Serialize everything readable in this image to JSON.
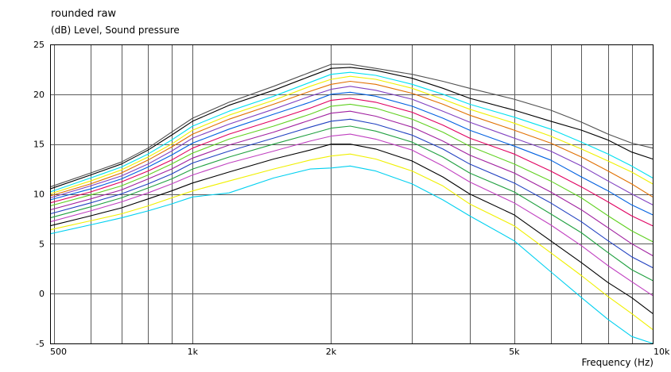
{
  "chart_data": {
    "type": "line",
    "title": "rounded raw",
    "ylabel": "(dB)  Level, Sound pressure",
    "xlabel": "Frequency  (Hz)",
    "x_scale": "log",
    "xlim": [
      490,
      10000
    ],
    "ylim": [
      -5,
      25
    ],
    "grid": true,
    "legend": "none",
    "x_ticks": [
      {
        "value": 500,
        "label": "500"
      },
      {
        "value": 1000,
        "label": "1k"
      },
      {
        "value": 2000,
        "label": "2k"
      },
      {
        "value": 5000,
        "label": "5k"
      },
      {
        "value": 10000,
        "label": "10k"
      }
    ],
    "y_ticks": [
      25,
      20,
      15,
      10,
      5,
      0,
      -5
    ],
    "x": [
      490,
      600,
      700,
      800,
      900,
      1000,
      1200,
      1500,
      1800,
      2000,
      2200,
      2500,
      3000,
      3500,
      4000,
      5000,
      6000,
      7000,
      8000,
      9000,
      10000
    ],
    "series": [
      {
        "color": "#505050",
        "values": [
          10.7,
          12.1,
          13.2,
          14.6,
          16.2,
          17.6,
          19.2,
          20.8,
          22.2,
          23.0,
          23.0,
          22.6,
          22.0,
          21.3,
          20.6,
          19.5,
          18.4,
          17.2,
          16.0,
          15.1,
          14.6
        ]
      },
      {
        "color": "#000000",
        "values": [
          10.5,
          11.9,
          13.0,
          14.4,
          15.9,
          17.3,
          18.9,
          20.4,
          21.8,
          22.6,
          22.7,
          22.4,
          21.6,
          20.6,
          19.6,
          18.4,
          17.3,
          16.4,
          15.4,
          14.2,
          13.5
        ]
      },
      {
        "color": "#00e0f0",
        "values": [
          10.2,
          11.6,
          12.7,
          14.0,
          15.4,
          16.8,
          18.3,
          19.8,
          21.2,
          22.0,
          22.2,
          21.9,
          21.0,
          20.0,
          19.0,
          17.7,
          16.5,
          15.2,
          14.0,
          12.8,
          11.6
        ]
      },
      {
        "color": "#f0f000",
        "values": [
          10.0,
          11.3,
          12.4,
          13.7,
          15.0,
          16.4,
          17.9,
          19.4,
          20.8,
          21.5,
          21.8,
          21.5,
          20.6,
          19.5,
          18.5,
          17.1,
          15.8,
          14.5,
          13.3,
          12.2,
          11.0
        ]
      },
      {
        "color": "#e07000",
        "values": [
          9.8,
          11.0,
          12.1,
          13.4,
          14.7,
          16.0,
          17.5,
          19.0,
          20.3,
          21.0,
          21.3,
          21.0,
          20.1,
          19.0,
          17.9,
          16.4,
          15.1,
          13.7,
          12.3,
          11.0,
          9.7
        ]
      },
      {
        "color": "#8040c0",
        "values": [
          9.6,
          10.8,
          11.8,
          13.0,
          14.3,
          15.6,
          17.0,
          18.5,
          19.8,
          20.5,
          20.8,
          20.4,
          19.5,
          18.3,
          17.2,
          15.6,
          14.3,
          12.8,
          11.3,
          10.0,
          8.9
        ]
      },
      {
        "color": "#0060e0",
        "values": [
          9.4,
          10.5,
          11.5,
          12.7,
          13.9,
          15.1,
          16.5,
          18.0,
          19.2,
          20.0,
          20.2,
          19.8,
          18.8,
          17.6,
          16.4,
          14.8,
          13.4,
          11.7,
          10.3,
          8.9,
          7.9
        ]
      },
      {
        "color": "#e00060",
        "values": [
          9.1,
          10.2,
          11.2,
          12.3,
          13.4,
          14.6,
          16.0,
          17.4,
          18.6,
          19.4,
          19.6,
          19.2,
          18.2,
          16.9,
          15.6,
          14.0,
          12.3,
          10.7,
          9.2,
          7.8,
          6.8
        ]
      },
      {
        "color": "#60d020",
        "values": [
          8.8,
          9.9,
          10.8,
          11.9,
          13.0,
          14.1,
          15.5,
          16.8,
          18.0,
          18.8,
          19.0,
          18.6,
          17.5,
          16.2,
          14.8,
          13.0,
          11.3,
          9.6,
          7.8,
          6.3,
          5.2
        ]
      },
      {
        "color": "#a020a0",
        "values": [
          8.4,
          9.5,
          10.4,
          11.5,
          12.5,
          13.6,
          14.9,
          16.2,
          17.4,
          18.1,
          18.3,
          17.8,
          16.7,
          15.3,
          13.9,
          12.1,
          10.2,
          8.4,
          6.6,
          5.0,
          3.8
        ]
      },
      {
        "color": "#2040c0",
        "values": [
          8.0,
          9.1,
          10.0,
          11.0,
          12.0,
          13.1,
          14.3,
          15.6,
          16.7,
          17.3,
          17.5,
          17.0,
          15.9,
          14.5,
          13.0,
          11.1,
          9.1,
          7.2,
          5.3,
          3.7,
          2.6
        ]
      },
      {
        "color": "#20a040",
        "values": [
          7.6,
          8.7,
          9.6,
          10.6,
          11.5,
          12.5,
          13.7,
          15.0,
          16.0,
          16.6,
          16.8,
          16.3,
          15.2,
          13.7,
          12.1,
          10.2,
          8.0,
          6.1,
          4.1,
          2.4,
          1.3
        ]
      },
      {
        "color": "#c040c0",
        "values": [
          7.2,
          8.3,
          9.2,
          10.1,
          11.0,
          11.9,
          13.1,
          14.3,
          15.3,
          15.8,
          16.0,
          15.5,
          14.4,
          12.8,
          11.2,
          9.1,
          6.9,
          4.8,
          2.8,
          1.2,
          -0.2
        ]
      },
      {
        "color": "#000000",
        "values": [
          6.8,
          7.8,
          8.6,
          9.5,
          10.3,
          11.1,
          12.2,
          13.5,
          14.4,
          15.0,
          15.0,
          14.5,
          13.3,
          11.7,
          10.0,
          7.9,
          5.3,
          3.1,
          1.1,
          -0.4,
          -2.0
        ]
      },
      {
        "color": "#f0f000",
        "values": [
          6.4,
          7.3,
          8.0,
          8.8,
          9.6,
          10.3,
          11.3,
          12.5,
          13.4,
          13.8,
          14.0,
          13.5,
          12.3,
          10.8,
          9.0,
          6.8,
          4.1,
          1.8,
          -0.3,
          -2.0,
          -3.6
        ]
      },
      {
        "color": "#00d0f0",
        "values": [
          6.0,
          6.9,
          7.6,
          8.3,
          9.0,
          9.7,
          10.1,
          11.6,
          12.5,
          12.6,
          12.8,
          12.3,
          11.0,
          9.4,
          7.8,
          5.3,
          2.2,
          -0.4,
          -2.6,
          -4.3,
          -5.0
        ]
      }
    ]
  }
}
